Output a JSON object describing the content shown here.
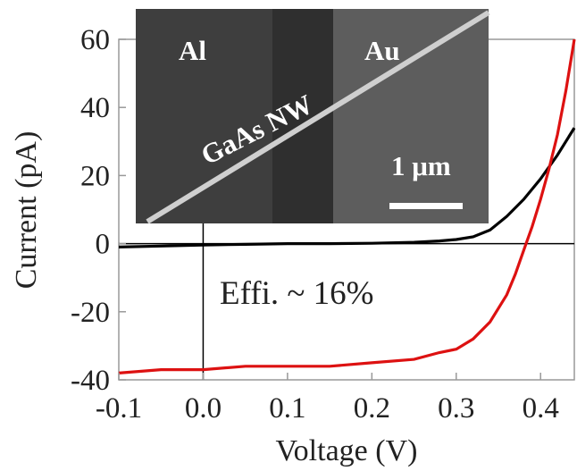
{
  "chart_data": {
    "type": "line",
    "xlabel": "Voltage (V)",
    "ylabel": "Current (pA)",
    "xlim": [
      -0.1,
      0.44
    ],
    "ylim": [
      -40,
      60
    ],
    "xticks": [
      -0.1,
      0.0,
      0.1,
      0.2,
      0.3,
      0.4
    ],
    "xtick_labels": [
      "-0.1",
      "0.0",
      "0.1",
      "0.2",
      "0.3",
      "0.4"
    ],
    "yticks": [
      -40,
      -20,
      0,
      20,
      40,
      60
    ],
    "ytick_labels": [
      "-40",
      "-20",
      "0",
      "20",
      "40",
      "60"
    ],
    "grid": false,
    "reference_lines": {
      "x": 0,
      "y": 0
    },
    "annotation": "Effi. ~ 16%",
    "series": [
      {
        "color": "#000000",
        "x": [
          -0.1,
          -0.05,
          0.0,
          0.05,
          0.1,
          0.15,
          0.2,
          0.25,
          0.28,
          0.3,
          0.32,
          0.34,
          0.36,
          0.38,
          0.4,
          0.42,
          0.44
        ],
        "y": [
          -1,
          -0.7,
          -0.4,
          -0.2,
          0,
          0,
          0.1,
          0.4,
          0.8,
          1.2,
          2,
          4,
          8,
          13,
          19,
          26,
          34
        ]
      },
      {
        "color": "#dd1111",
        "x": [
          -0.1,
          -0.05,
          0.0,
          0.05,
          0.1,
          0.15,
          0.2,
          0.25,
          0.28,
          0.3,
          0.32,
          0.34,
          0.36,
          0.37,
          0.38,
          0.39,
          0.4,
          0.41,
          0.42,
          0.43,
          0.44
        ],
        "y": [
          -38,
          -37,
          -37,
          -36,
          -36,
          -36,
          -35,
          -34,
          -32,
          -31,
          -28,
          -23,
          -15,
          -9,
          -2,
          5,
          13,
          22,
          32,
          45,
          60
        ]
      }
    ],
    "inset": {
      "labels": [
        "Al",
        "Au",
        "GaAs NW",
        "1 μm"
      ],
      "scale_bar": "1 μm"
    }
  }
}
